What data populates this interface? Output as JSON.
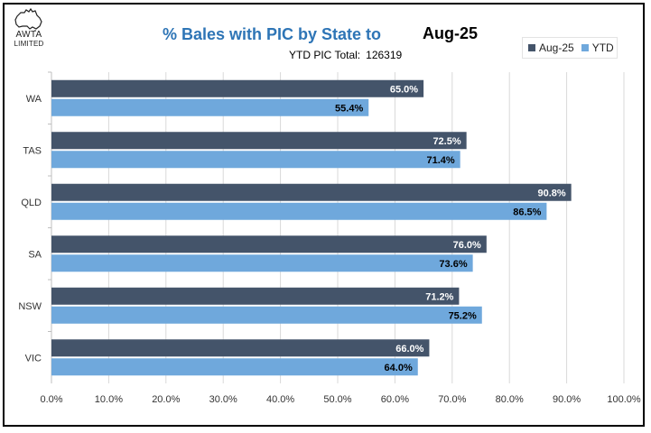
{
  "logo": {
    "line1": "AWTA",
    "line2": "LIMITED"
  },
  "header": {
    "title": "% Bales with PIC by State to",
    "period": "Aug-25",
    "ytd_label": "YTD PIC Total:",
    "ytd_value": "126319"
  },
  "chart_data": {
    "type": "bar",
    "orientation": "horizontal",
    "categories": [
      "WA",
      "TAS",
      "QLD",
      "SA",
      "NSW",
      "VIC"
    ],
    "series": [
      {
        "name": "Aug-25",
        "color": "#44546a",
        "values": [
          65.0,
          72.5,
          90.8,
          76.0,
          71.2,
          66.0
        ]
      },
      {
        "name": "YTD",
        "color": "#6fa8dc",
        "values": [
          55.4,
          71.4,
          86.5,
          73.6,
          75.2,
          64.0
        ]
      }
    ],
    "xlim": [
      0,
      100
    ],
    "xticks": [
      "0.0%",
      "10.0%",
      "20.0%",
      "30.0%",
      "40.0%",
      "50.0%",
      "60.0%",
      "70.0%",
      "80.0%",
      "90.0%",
      "100.0%"
    ],
    "grid": true,
    "legend": "top-right"
  }
}
